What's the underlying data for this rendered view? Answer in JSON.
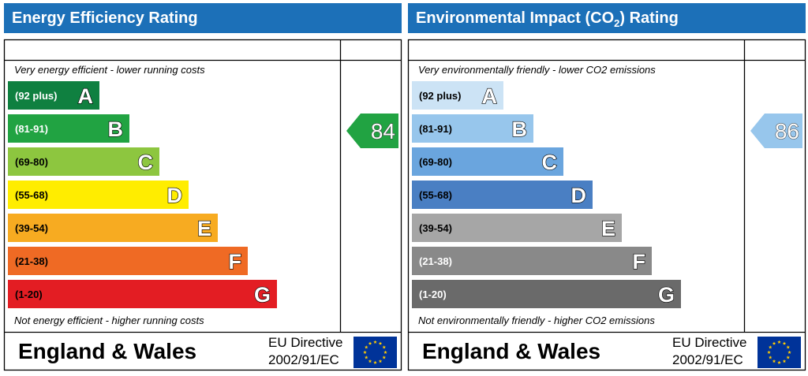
{
  "chart_data": [
    {
      "type": "bar",
      "title": "Energy Efficiency Rating",
      "title_sub": "",
      "title_tail": "",
      "header_color": "#1c70b8",
      "top_caption": "Very energy efficient - lower running costs",
      "bottom_caption": "Not energy efficient - higher running costs",
      "bands": [
        {
          "range": "(92 plus)",
          "letter": "A",
          "color": "#0f8040",
          "text_color": "#ffffff"
        },
        {
          "range": "(81-91)",
          "letter": "B",
          "color": "#21a342",
          "text_color": "#ffffff"
        },
        {
          "range": "(69-80)",
          "letter": "C",
          "color": "#8dc63f",
          "text_color": "#000000"
        },
        {
          "range": "(55-68)",
          "letter": "D",
          "color": "#ffed00",
          "text_color": "#000000"
        },
        {
          "range": "(39-54)",
          "letter": "E",
          "color": "#f7ab21",
          "text_color": "#000000"
        },
        {
          "range": "(21-38)",
          "letter": "F",
          "color": "#ef6a24",
          "text_color": "#000000"
        },
        {
          "range": "(1-20)",
          "letter": "G",
          "color": "#e31d23",
          "text_color": "#000000"
        }
      ],
      "rating": {
        "value": 84,
        "band": "B",
        "color": "#21a342"
      },
      "footer": {
        "region": "England & Wales",
        "directive_line1": "EU Directive",
        "directive_line2": "2002/91/EC"
      }
    },
    {
      "type": "bar",
      "title": "Environmental Impact (CO",
      "title_sub": "2",
      "title_tail": ") Rating",
      "header_color": "#1c70b8",
      "top_caption": "Very environmentally friendly - lower CO2 emissions",
      "bottom_caption": "Not environmentally friendly - higher CO2 emissions",
      "bands": [
        {
          "range": "(92 plus)",
          "letter": "A",
          "color": "#cce3f5",
          "text_color": "#000000"
        },
        {
          "range": "(81-91)",
          "letter": "B",
          "color": "#97c6ec",
          "text_color": "#000000"
        },
        {
          "range": "(69-80)",
          "letter": "C",
          "color": "#6aa5de",
          "text_color": "#000000"
        },
        {
          "range": "(55-68)",
          "letter": "D",
          "color": "#4a7fc3",
          "text_color": "#000000"
        },
        {
          "range": "(39-54)",
          "letter": "E",
          "color": "#a6a6a6",
          "text_color": "#000000"
        },
        {
          "range": "(21-38)",
          "letter": "F",
          "color": "#898989",
          "text_color": "#ffffff"
        },
        {
          "range": "(1-20)",
          "letter": "G",
          "color": "#6a6a6a",
          "text_color": "#ffffff"
        }
      ],
      "rating": {
        "value": 86,
        "band": "B",
        "color": "#97c6ec"
      },
      "footer": {
        "region": "England & Wales",
        "directive_line1": "EU Directive",
        "directive_line2": "2002/91/EC"
      }
    }
  ],
  "eu_flag": {
    "background": "#003399",
    "star_color": "#ffcc00",
    "icon": "eu-flag-icon"
  }
}
